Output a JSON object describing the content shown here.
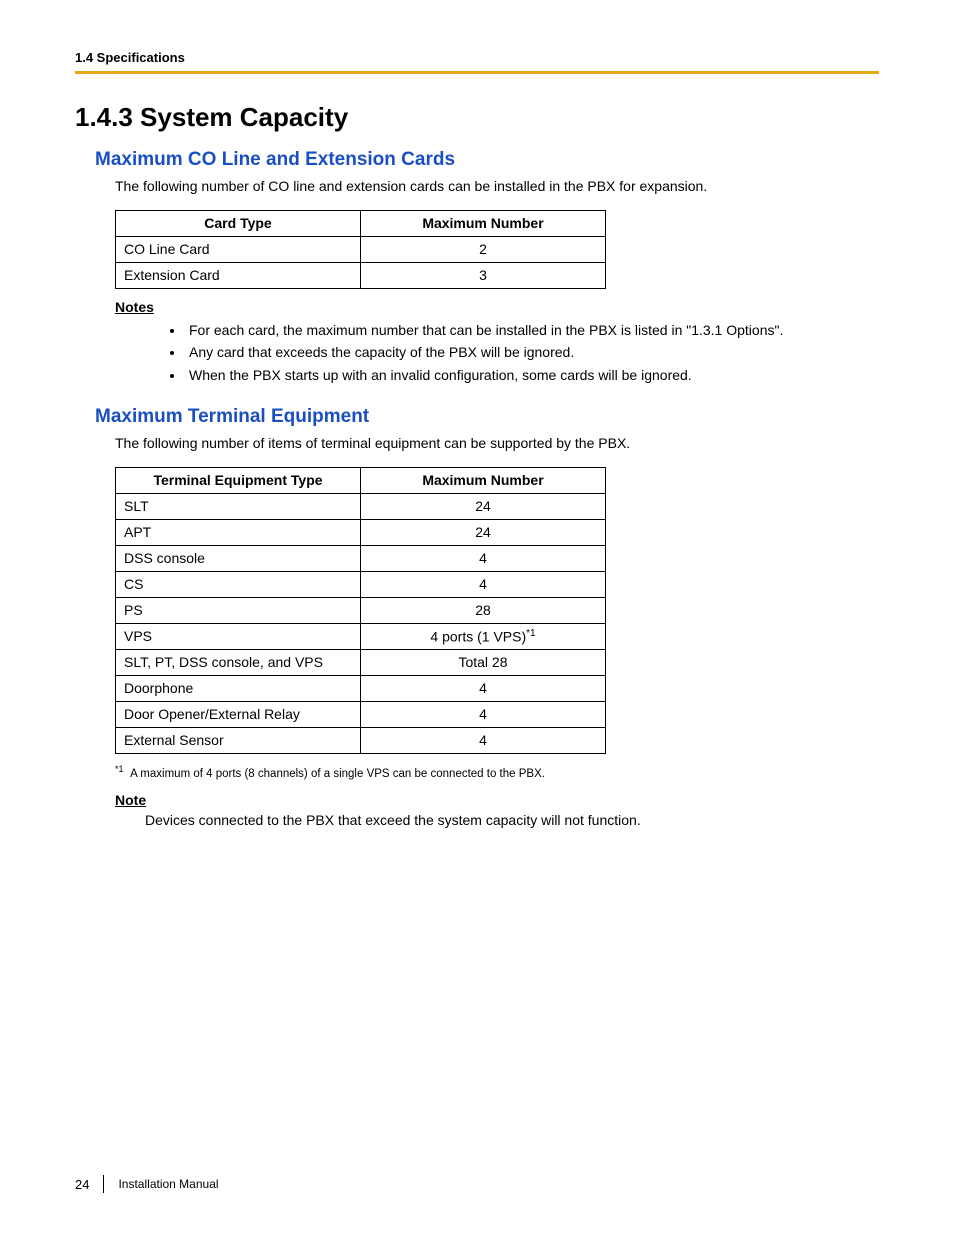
{
  "header": {
    "running": "1.4 Specifications",
    "rule_color": "#e6a817"
  },
  "title": "1.4.3    System Capacity",
  "section1": {
    "heading": "Maximum CO Line and Extension Cards",
    "intro": "The following number of CO line and extension cards can be installed in the PBX for expansion.",
    "table": {
      "col1_width": 245,
      "col2_width": 245,
      "columns": [
        "Card Type",
        "Maximum Number"
      ],
      "rows": [
        [
          "CO Line Card",
          "2"
        ],
        [
          "Extension Card",
          "3"
        ]
      ]
    },
    "notes_heading": "Notes",
    "notes": [
      "For each card, the maximum number that can be installed in the PBX is listed in \"1.3.1 Options\".",
      "Any card that exceeds the capacity of the PBX will be ignored.",
      "When the PBX starts up with an invalid configuration, some cards will be ignored."
    ]
  },
  "section2": {
    "heading": "Maximum Terminal Equipment",
    "intro": "The following number of items of terminal equipment can be supported by the PBX.",
    "table": {
      "col1_width": 245,
      "col2_width": 245,
      "columns": [
        "Terminal Equipment Type",
        "Maximum Number"
      ],
      "rows": [
        [
          "SLT",
          "24"
        ],
        [
          "APT",
          "24"
        ],
        [
          "DSS console",
          "4"
        ],
        [
          "CS",
          "4"
        ],
        [
          "PS",
          "28"
        ],
        [
          "VPS",
          "4 ports (1 VPS)"
        ],
        [
          "SLT, PT, DSS console, and VPS",
          "Total 28"
        ],
        [
          "Doorphone",
          "4"
        ],
        [
          "Door Opener/External Relay",
          "4"
        ],
        [
          "External Sensor",
          "4"
        ]
      ],
      "sup_row_index": 5,
      "sup_marker": "*1"
    },
    "footnote_marker": "*1",
    "footnote": "A maximum of 4 ports (8 channels) of a single VPS can be connected to the PBX.",
    "note_heading": "Note",
    "note_body": "Devices connected to the PBX that exceed the system capacity will not function."
  },
  "footer": {
    "page": "24",
    "doc": "Installation Manual"
  }
}
